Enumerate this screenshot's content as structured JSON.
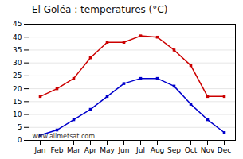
{
  "chart_data": {
    "type": "line",
    "title": "El Goléa : temperatures (°C)",
    "categories": [
      "Jan",
      "Feb",
      "Mar",
      "Apr",
      "May",
      "Jun",
      "Jul",
      "Aug",
      "Sep",
      "Oct",
      "Nov",
      "Dec"
    ],
    "series": [
      {
        "color": "#cc0000",
        "values": [
          17,
          20,
          24,
          32,
          38,
          38,
          40.5,
          40,
          35,
          29,
          17,
          17
        ]
      },
      {
        "color": "#0000cc",
        "values": [
          2,
          4,
          8,
          12,
          17,
          22,
          24,
          24,
          21,
          14,
          8,
          3
        ]
      }
    ],
    "ylim": [
      0,
      45
    ],
    "yticks": [
      0,
      5,
      10,
      15,
      20,
      25,
      30,
      35,
      40,
      45
    ],
    "grid": true,
    "marker": "square",
    "line_style": "solid",
    "annotations": [
      "www.allmetsat.com"
    ]
  }
}
